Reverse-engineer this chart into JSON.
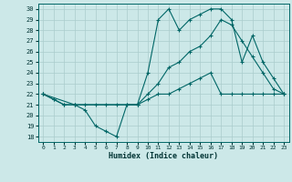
{
  "title": "",
  "xlabel": "Humidex (Indice chaleur)",
  "background_color": "#cce8e8",
  "grid_color": "#aacccc",
  "line_color": "#006666",
  "xlim": [
    -0.5,
    23.5
  ],
  "ylim": [
    17.5,
    30.5
  ],
  "yticks": [
    18,
    19,
    20,
    21,
    22,
    23,
    24,
    25,
    26,
    27,
    28,
    29,
    30
  ],
  "xticks": [
    0,
    1,
    2,
    3,
    4,
    5,
    6,
    7,
    8,
    9,
    10,
    11,
    12,
    13,
    14,
    15,
    16,
    17,
    18,
    19,
    20,
    21,
    22,
    23
  ],
  "line1_x": [
    0,
    1,
    2,
    3,
    4,
    5,
    6,
    7,
    8,
    9,
    10,
    11,
    12,
    13,
    14,
    15,
    16,
    17,
    18,
    19,
    20,
    21,
    22,
    23
  ],
  "line1_y": [
    22,
    21.5,
    21,
    21,
    21,
    21,
    21,
    21,
    21,
    21,
    21.5,
    22,
    22,
    22.5,
    23,
    23.5,
    24,
    22,
    22,
    22,
    22,
    22,
    22,
    22
  ],
  "line2_x": [
    0,
    1,
    2,
    3,
    4,
    5,
    6,
    7,
    8,
    9,
    10,
    11,
    12,
    13,
    14,
    15,
    16,
    17,
    18,
    19,
    20,
    21,
    22,
    23
  ],
  "line2_y": [
    22,
    21.5,
    21,
    21,
    20.5,
    19,
    18.5,
    18,
    21,
    21,
    24,
    29,
    30,
    28,
    29,
    29.5,
    30,
    30,
    29,
    25,
    27.5,
    25,
    23.5,
    22
  ],
  "line3_x": [
    0,
    3,
    9,
    10,
    11,
    12,
    13,
    14,
    15,
    16,
    17,
    18,
    19,
    20,
    21,
    22,
    23
  ],
  "line3_y": [
    22,
    21,
    21,
    22,
    23,
    24.5,
    25,
    26,
    26.5,
    27.5,
    29,
    28.5,
    27,
    25.5,
    24,
    22.5,
    22
  ]
}
